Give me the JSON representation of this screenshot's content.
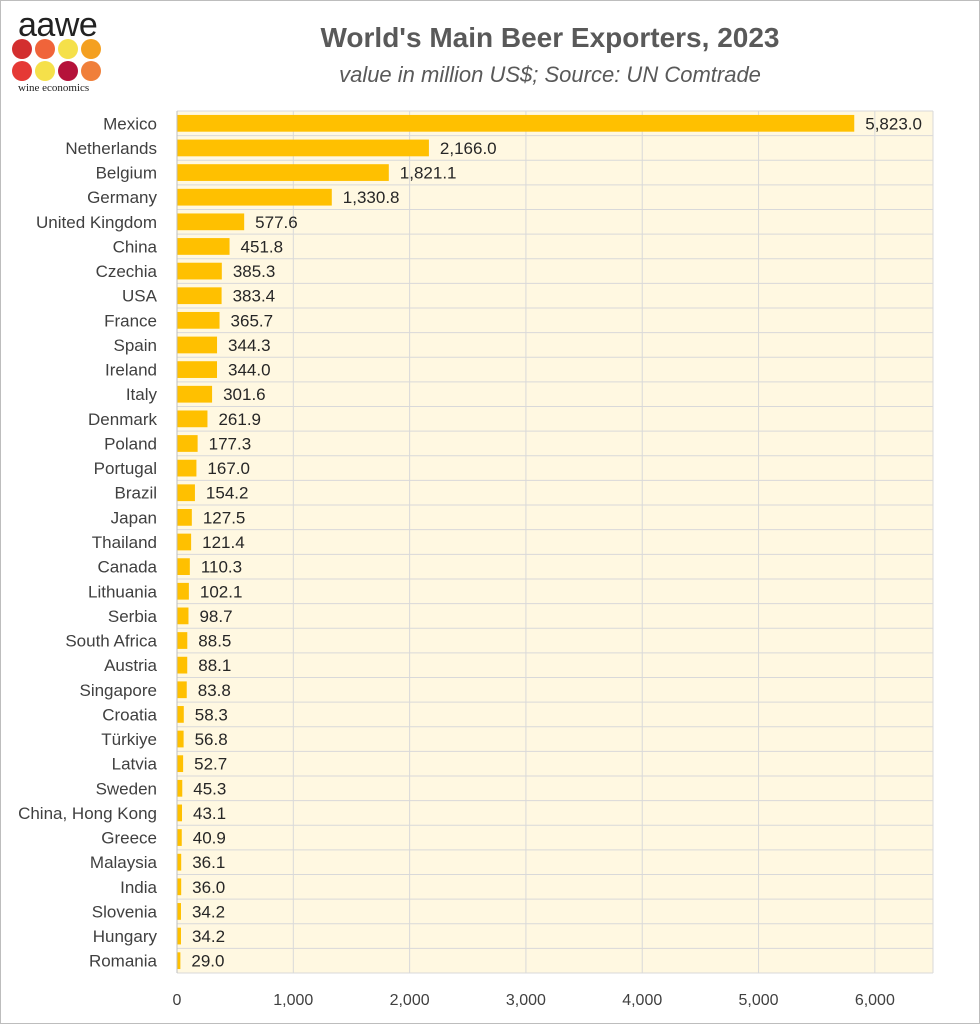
{
  "logo": {
    "name": "aawe",
    "subtitle": "wine economics",
    "dot_colors": [
      "#d32f2f",
      "#f0643a",
      "#f5e04a",
      "#f4a020",
      "#e53935",
      "#f5e04a",
      "#b5123a",
      "#f07f3a"
    ]
  },
  "chart_data": {
    "type": "bar",
    "orientation": "horizontal",
    "title": "World's Main Beer Exporters, 2023",
    "subtitle": "value in million US$; Source: UN Comtrade",
    "categories": [
      "Mexico",
      "Netherlands",
      "Belgium",
      "Germany",
      "United Kingdom",
      "China",
      "Czechia",
      "USA",
      "France",
      "Spain",
      "Ireland",
      "Italy",
      "Denmark",
      "Poland",
      "Portugal",
      "Brazil",
      "Japan",
      "Thailand",
      "Canada",
      "Lithuania",
      "Serbia",
      "South Africa",
      "Austria",
      "Singapore",
      "Croatia",
      "Türkiye",
      "Latvia",
      "Sweden",
      "China, Hong Kong",
      "Greece",
      "Malaysia",
      "India",
      "Slovenia",
      "Hungary",
      "Romania"
    ],
    "values": [
      5823.0,
      2166.0,
      1821.1,
      1330.8,
      577.6,
      451.8,
      385.3,
      383.4,
      365.7,
      344.3,
      344.0,
      301.6,
      261.9,
      177.3,
      167.0,
      154.2,
      127.5,
      121.4,
      110.3,
      102.1,
      98.7,
      88.5,
      88.1,
      83.8,
      58.3,
      56.8,
      52.7,
      45.3,
      43.1,
      40.9,
      36.1,
      36.0,
      34.2,
      34.2,
      29.0
    ],
    "value_labels": [
      "5,823.0",
      "2,166.0",
      "1,821.1",
      "1,330.8",
      "577.6",
      "451.8",
      "385.3",
      "383.4",
      "365.7",
      "344.3",
      "344.0",
      "301.6",
      "261.9",
      "177.3",
      "167.0",
      "154.2",
      "127.5",
      "121.4",
      "110.3",
      "102.1",
      "98.7",
      "88.5",
      "88.1",
      "83.8",
      "58.3",
      "56.8",
      "52.7",
      "45.3",
      "43.1",
      "40.9",
      "36.1",
      "36.0",
      "34.2",
      "34.2",
      "29.0"
    ],
    "xlim": [
      0,
      6500
    ],
    "x_ticks": [
      0,
      1000,
      2000,
      3000,
      4000,
      5000,
      6000
    ],
    "x_tick_labels": [
      "0",
      "1,000",
      "2,000",
      "3,000",
      "4,000",
      "5,000",
      "6,000"
    ],
    "grid": true,
    "colors": {
      "bar": "#ffc000",
      "plot_bg": "#fff8e1",
      "grid": "#d9d9d9"
    }
  }
}
